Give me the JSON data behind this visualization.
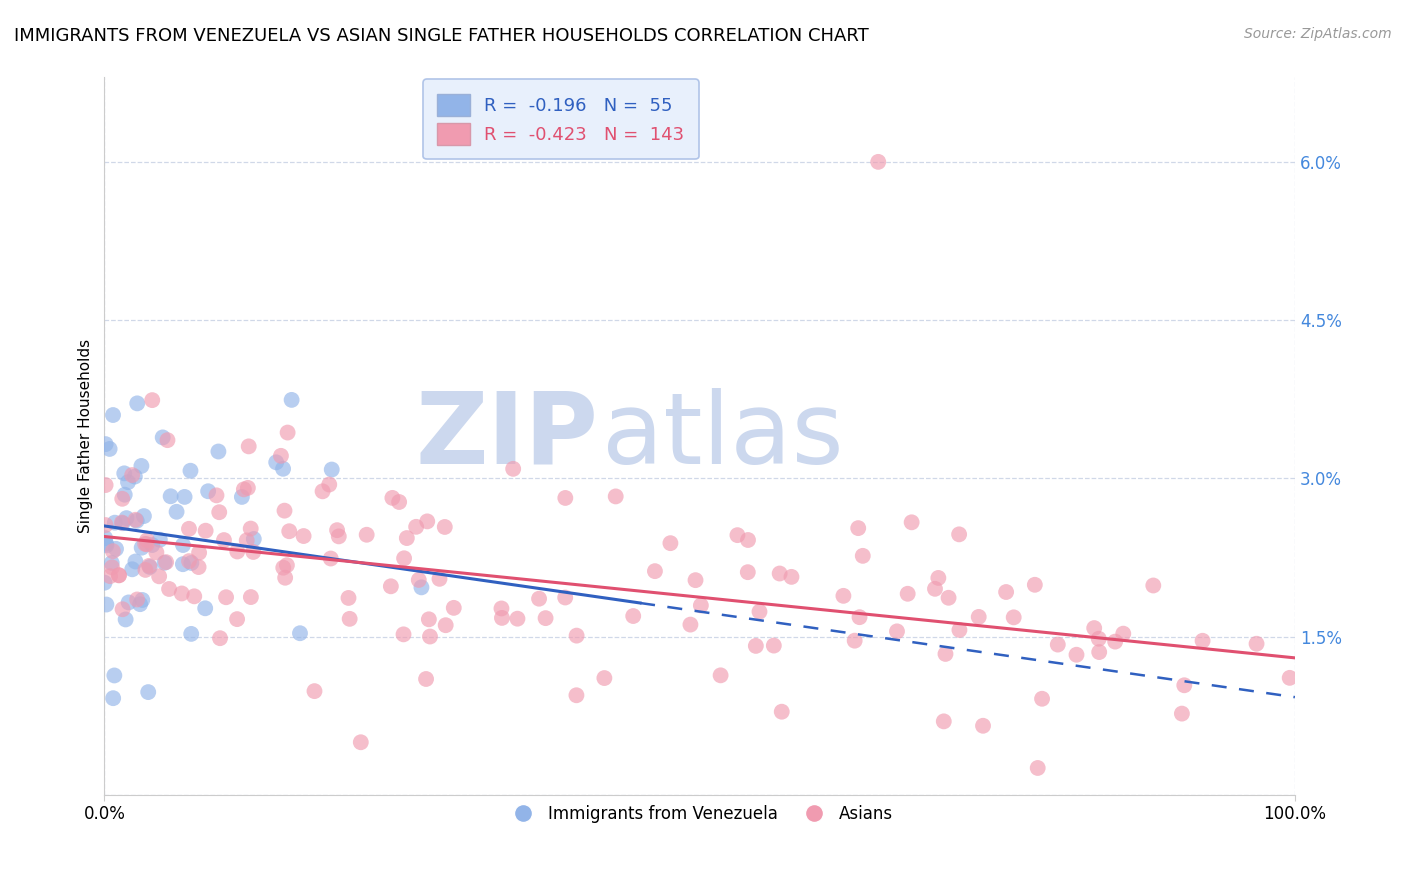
{
  "title": "IMMIGRANTS FROM VENEZUELA VS ASIAN SINGLE FATHER HOUSEHOLDS CORRELATION CHART",
  "source": "Source: ZipAtlas.com",
  "ylabel": "Single Father Households",
  "xlim": [
    0,
    100
  ],
  "ylim": [
    0,
    6.8
  ],
  "yticks": [
    0,
    1.5,
    3.0,
    4.5,
    6.0
  ],
  "xticks": [
    0,
    100
  ],
  "xtick_labels": [
    "0.0%",
    "100.0%"
  ],
  "ytick_labels": [
    "",
    "1.5%",
    "3.0%",
    "4.5%",
    "6.0%"
  ],
  "blue_color": "#92b4e8",
  "pink_color": "#f09bb0",
  "blue_line_color": "#3060c0",
  "pink_line_color": "#e05070",
  "legend_box_color": "#e8f0fc",
  "legend_border_color": "#b0c4e8",
  "R_blue": -0.196,
  "N_blue": 55,
  "R_pink": -0.423,
  "N_pink": 143,
  "watermark_zip": "ZIP",
  "watermark_atlas": "atlas",
  "watermark_color": "#ccd8ee",
  "background_color": "#ffffff",
  "grid_color": "#d0d8e8",
  "ytick_color": "#4488dd",
  "title_fontsize": 13,
  "axis_fontsize": 11,
  "tick_fontsize": 12,
  "blue_intercept": 2.55,
  "blue_slope": -0.017,
  "pink_intercept": 2.45,
  "pink_slope": -0.011,
  "blue_solid_end": 45,
  "blue_x_max": 100
}
